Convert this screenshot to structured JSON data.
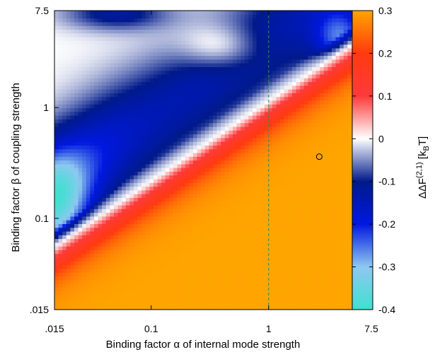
{
  "chart_data": {
    "type": "heatmap",
    "xlabel": "Binding factor α of internal mode strength",
    "ylabel": "Binding factor β of coupling strength",
    "colorbar_label_parts": {
      "base": "ΔΔF",
      "sup": "(2,1)",
      "unit_open": " [k",
      "unit_sub": "B",
      "unit_close": "T]"
    },
    "x_scale": "log",
    "y_scale": "log",
    "xlim": [
      0.015,
      7.5
    ],
    "ylim": [
      0.015,
      7.5
    ],
    "x_ticks": [
      {
        "value": 0.015,
        "label": ".015"
      },
      {
        "value": 0.1,
        "label": "0.1"
      },
      {
        "value": 1,
        "label": "1"
      },
      {
        "value": 7.5,
        "label": "7.5"
      }
    ],
    "y_ticks": [
      {
        "value": 0.015,
        "label": ".015"
      },
      {
        "value": 0.1,
        "label": "0.1"
      },
      {
        "value": 1,
        "label": "1"
      },
      {
        "value": 7.5,
        "label": "7.5"
      }
    ],
    "color_range": [
      -0.4,
      0.3
    ],
    "colorbar_ticks": [
      {
        "value": 0.3,
        "label": "0.3"
      },
      {
        "value": 0.2,
        "label": "0.2"
      },
      {
        "value": 0.1,
        "label": "0.1"
      },
      {
        "value": 0,
        "label": "0"
      },
      {
        "value": -0.1,
        "label": "-0.1"
      },
      {
        "value": -0.2,
        "label": "-0.2"
      },
      {
        "value": -0.3,
        "label": "-0.3"
      },
      {
        "value": -0.4,
        "label": "-0.4"
      }
    ],
    "colormap": [
      {
        "value": -0.4,
        "color": "#40e0d0"
      },
      {
        "value": -0.3,
        "color": "#8ec8f0"
      },
      {
        "value": -0.2,
        "color": "#0018e0"
      },
      {
        "value": -0.1,
        "color": "#001a8a"
      },
      {
        "value": 0,
        "color": "#ffffff"
      },
      {
        "value": 0.1,
        "color": "#fd3a3a"
      },
      {
        "value": 0.2,
        "color": "#ff3a10"
      },
      {
        "value": 0.3,
        "color": "#ffa500"
      }
    ],
    "vertical_reference_line": {
      "x": 1,
      "style": "dashed",
      "color": "#2e8b57"
    },
    "marker": {
      "x": 2.7,
      "y": 0.36,
      "shape": "open-circle"
    },
    "grid_resolution": [
      80,
      80
    ]
  }
}
